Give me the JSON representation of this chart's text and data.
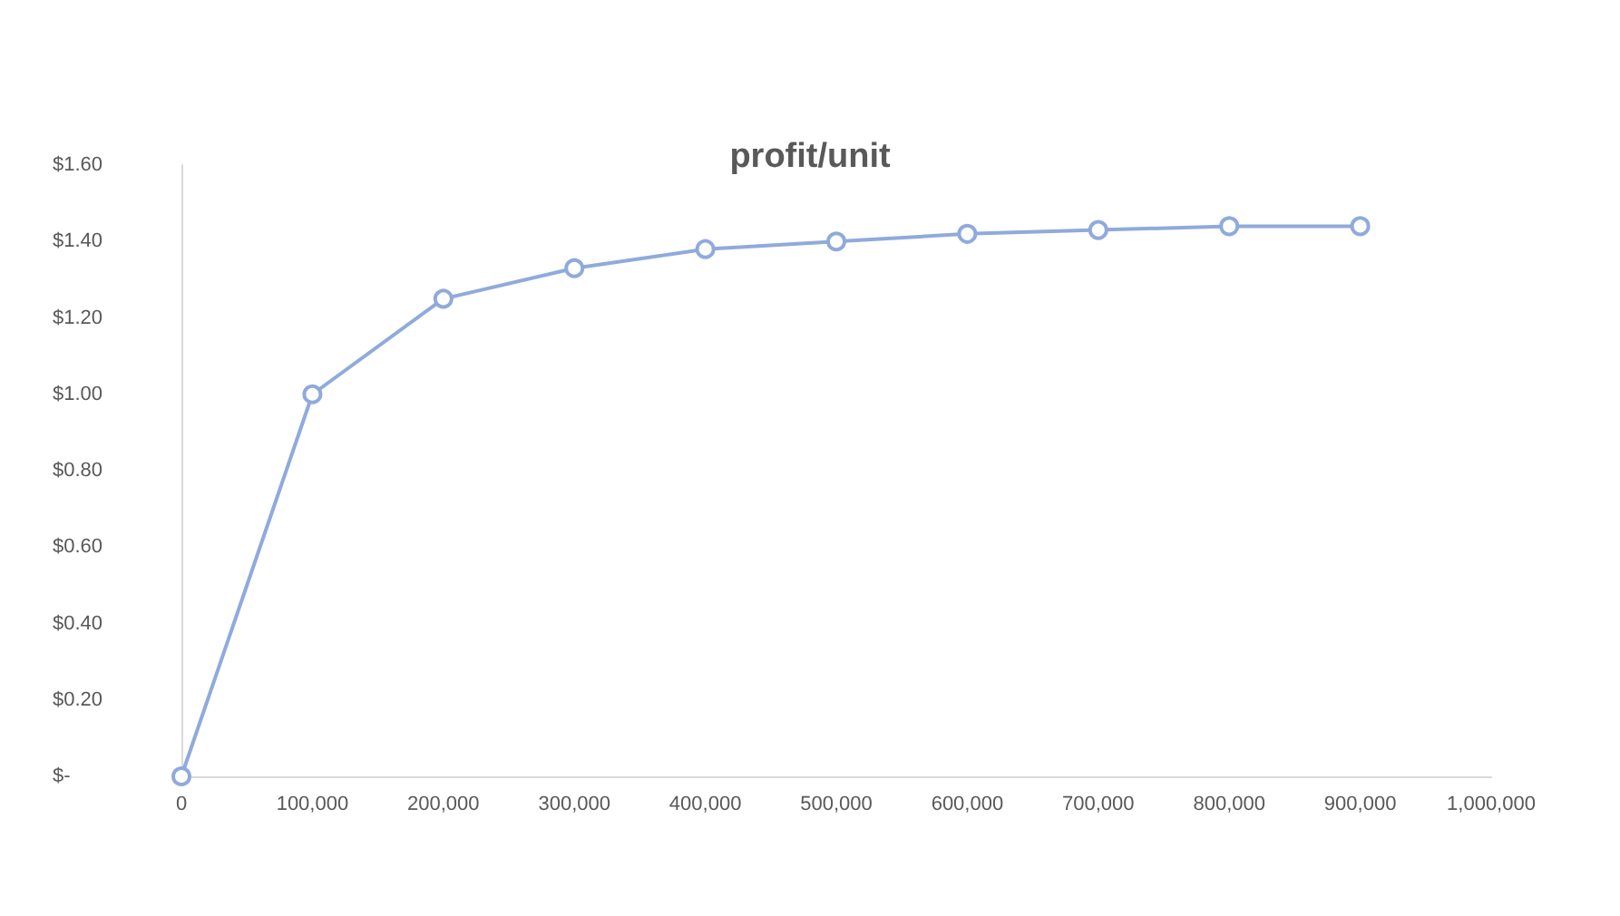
{
  "chart_data": {
    "type": "line",
    "title": "profit/unit",
    "x": [
      0,
      100000,
      200000,
      300000,
      400000,
      500000,
      600000,
      700000,
      800000,
      900000
    ],
    "series": [
      {
        "color": "#8faadc",
        "values": [
          0,
          1.0,
          1.25,
          1.33,
          1.38,
          1.4,
          1.42,
          1.43,
          1.44,
          1.44
        ]
      }
    ],
    "xlim": [
      0,
      1000000
    ],
    "xticks": [
      {
        "value": 0,
        "label": "0"
      },
      {
        "value": 100000,
        "label": "100,000"
      },
      {
        "value": 200000,
        "label": "200,000"
      },
      {
        "value": 300000,
        "label": "300,000"
      },
      {
        "value": 400000,
        "label": "400,000"
      },
      {
        "value": 500000,
        "label": "500,000"
      },
      {
        "value": 600000,
        "label": "600,000"
      },
      {
        "value": 700000,
        "label": "700,000"
      },
      {
        "value": 800000,
        "label": "800,000"
      },
      {
        "value": 900000,
        "label": "900,000"
      },
      {
        "value": 1000000,
        "label": "1,000,000"
      }
    ],
    "ylim": [
      0,
      1.6
    ],
    "yticks": [
      {
        "value": 0,
        "label": "$-"
      },
      {
        "value": 0.2,
        "label": "$0.20"
      },
      {
        "value": 0.4,
        "label": "$0.40"
      },
      {
        "value": 0.6,
        "label": "$0.60"
      },
      {
        "value": 0.8,
        "label": "$0.80"
      },
      {
        "value": 1,
        "label": "$1.00"
      },
      {
        "value": 1.2,
        "label": "$1.20"
      },
      {
        "value": 1.4,
        "label": "$1.40"
      },
      {
        "value": 1.6,
        "label": "$1.60"
      }
    ],
    "grid": false,
    "marker": "circle",
    "line_style": "solid"
  }
}
